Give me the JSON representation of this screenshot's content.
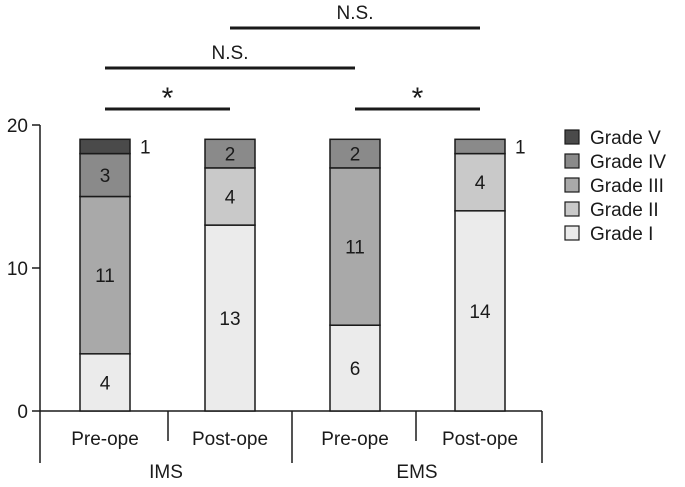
{
  "chart_data": {
    "type": "bar",
    "stacked": true,
    "title": "",
    "xlabel": "",
    "ylabel": "",
    "ylim": [
      0,
      20
    ],
    "yticks": [
      0,
      10,
      20
    ],
    "grid": false,
    "legend_position": "right",
    "groups": [
      {
        "label": "IMS",
        "categories": [
          "Pre-ope",
          "Post-ope"
        ]
      },
      {
        "label": "EMS",
        "categories": [
          "Pre-ope",
          "Post-ope"
        ]
      }
    ],
    "categories": [
      "Pre-ope",
      "Post-ope",
      "Pre-ope",
      "Post-ope"
    ],
    "series": [
      {
        "name": "Grade I",
        "values": [
          4,
          13,
          6,
          14
        ],
        "color": "#ebebeb"
      },
      {
        "name": "Grade II",
        "values": [
          0,
          4,
          0,
          4
        ],
        "color": "#c9c9c9"
      },
      {
        "name": "Grade III",
        "values": [
          11,
          0,
          11,
          0
        ],
        "color": "#a9a9a9"
      },
      {
        "name": "Grade IV",
        "values": [
          3,
          2,
          2,
          1
        ],
        "color": "#8a8a8a"
      },
      {
        "name": "Grade V",
        "values": [
          1,
          0,
          0,
          0
        ],
        "color": "#4a4a4a"
      }
    ],
    "legend_order": [
      "Grade V",
      "Grade IV",
      "Grade III",
      "Grade II",
      "Grade I"
    ],
    "significance": [
      {
        "from": 0,
        "to": 1,
        "label": "*"
      },
      {
        "from": 2,
        "to": 3,
        "label": "*"
      },
      {
        "from": 0,
        "to": 2,
        "label": "N.S."
      },
      {
        "from": 1,
        "to": 3,
        "label": "N.S."
      }
    ]
  }
}
